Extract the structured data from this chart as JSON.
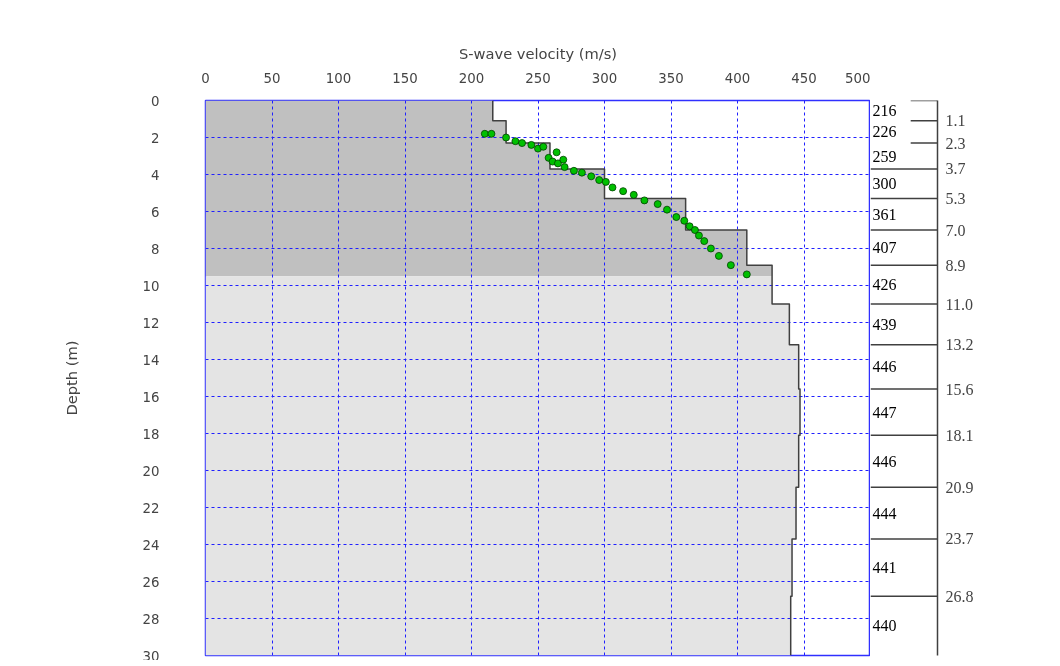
{
  "chart_data": {
    "type": "line",
    "orientation": "horizontal",
    "xlabel": "S-wave velocity (m/s)",
    "ylabel": "Depth (m)",
    "xlim": [
      0,
      500
    ],
    "xticks": [
      0,
      50,
      100,
      150,
      200,
      250,
      300,
      350,
      400,
      450,
      500
    ],
    "ylim": [
      30,
      0
    ],
    "yticks": [
      0,
      2,
      4,
      6,
      8,
      10,
      12,
      14,
      16,
      18,
      20,
      22,
      24,
      26,
      28,
      30
    ],
    "y2lim": [
      30,
      0
    ],
    "y2ticks": [
      {
        "value": 1.1,
        "label": "1.1"
      },
      {
        "value": 2.3,
        "label": "2.3"
      },
      {
        "value": 3.7,
        "label": "3.7"
      },
      {
        "value": 5.3,
        "label": "5.3"
      },
      {
        "value": 7.0,
        "label": "7.0"
      },
      {
        "value": 8.9,
        "label": "8.9"
      },
      {
        "value": 11.0,
        "label": "11.0"
      },
      {
        "value": 13.2,
        "label": "13.2"
      },
      {
        "value": 15.6,
        "label": "15.6"
      },
      {
        "value": 18.1,
        "label": "18.1"
      },
      {
        "value": 20.9,
        "label": "20.9"
      },
      {
        "value": 23.7,
        "label": "23.7"
      },
      {
        "value": 26.8,
        "label": "26.8"
      }
    ],
    "grid": true,
    "series": [
      {
        "type": "area",
        "color": "#c0c0c0",
        "values": [
          216,
          216,
          226,
          226,
          259,
          259,
          300,
          300,
          361,
          361,
          407,
          407,
          426,
          426
        ],
        "x": [
          0,
          1.1,
          1.1,
          2.3,
          2.3,
          3.7,
          3.7,
          5.3,
          5.3,
          7.0,
          7.0,
          8.9,
          8.9,
          9.5
        ]
      },
      {
        "type": "area",
        "color": "#e4e4e4",
        "values": [
          426,
          426,
          439,
          439,
          446,
          446,
          447,
          447,
          446,
          446,
          444,
          444,
          441,
          441,
          440,
          440
        ],
        "x": [
          9.5,
          11.0,
          11.0,
          13.2,
          13.2,
          15.6,
          15.6,
          18.1,
          18.1,
          20.9,
          20.9,
          23.7,
          23.7,
          26.8,
          26.8,
          30
        ]
      },
      {
        "color": "#404040",
        "values": [
          216,
          216,
          226,
          226,
          259,
          259,
          300,
          300,
          361,
          361,
          407,
          407,
          426,
          426,
          439,
          439,
          446,
          446,
          447,
          447,
          446,
          446,
          444,
          444,
          441,
          441,
          440,
          440
        ],
        "x": [
          0,
          1.1,
          1.1,
          2.3,
          2.3,
          3.7,
          3.7,
          5.3,
          5.3,
          7.0,
          7.0,
          8.9,
          8.9,
          11.0,
          11.0,
          13.2,
          13.2,
          15.6,
          15.6,
          18.1,
          18.1,
          20.9,
          20.9,
          23.7,
          23.7,
          26.8,
          26.8,
          30
        ]
      },
      {
        "type": "scatter",
        "marker": "circle",
        "color": "#00c000",
        "values": [
          210,
          215,
          226,
          233,
          238,
          245,
          250,
          254,
          258,
          264,
          261,
          265,
          269,
          270,
          277,
          283,
          290,
          296,
          301,
          306,
          314,
          322,
          330,
          340,
          347,
          354,
          360,
          364,
          368,
          371,
          375,
          380,
          386,
          395,
          407
        ],
        "x": [
          1.8,
          1.8,
          2.0,
          2.2,
          2.3,
          2.4,
          2.6,
          2.5,
          3.1,
          2.8,
          3.3,
          3.4,
          3.2,
          3.6,
          3.8,
          3.9,
          4.1,
          4.3,
          4.4,
          4.7,
          4.9,
          5.1,
          5.4,
          5.6,
          5.9,
          6.3,
          6.5,
          6.8,
          7.0,
          7.3,
          7.6,
          8.0,
          8.4,
          8.9,
          9.4
        ]
      }
    ],
    "annotations": [
      "216",
      "226",
      "259",
      "300",
      "361",
      "407",
      "426",
      "439",
      "446",
      "447",
      "446",
      "444",
      "441",
      "440"
    ]
  }
}
